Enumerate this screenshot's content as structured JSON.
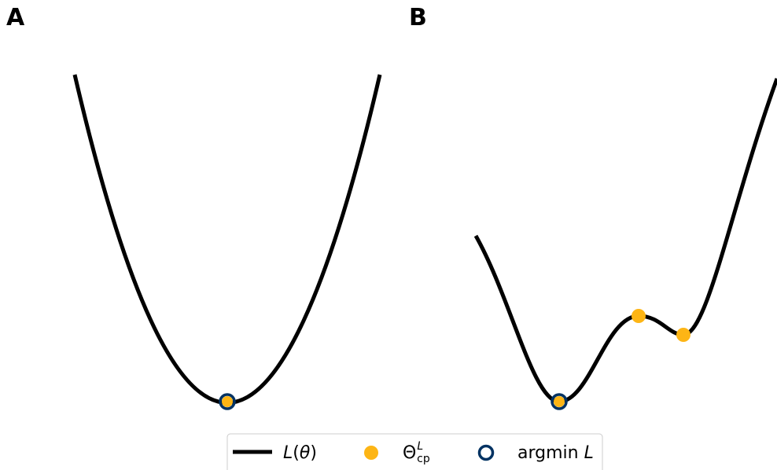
{
  "panels": [
    {
      "label": "A"
    },
    {
      "label": "B"
    }
  ],
  "legend": {
    "loss_curve": {
      "symbol": "L",
      "arg_open": "(",
      "arg": "θ",
      "arg_close": ")"
    },
    "critical_points": {
      "symbol": "Θ",
      "sup": "L",
      "sub": "cp"
    },
    "argmin": {
      "text": "argmin ",
      "symbol": "L"
    }
  },
  "colors": {
    "curve": "#000000",
    "critical_point": "#FDB515",
    "argmin_ring": "#003262",
    "legend_border": "#cccccc"
  },
  "chart_data": [
    {
      "type": "line",
      "panel": "A",
      "x": [
        -1,
        1
      ],
      "function": "quadratic",
      "series": [
        {
          "name": "L(θ)",
          "shape": "parabola"
        }
      ],
      "critical_points_x": [
        0
      ],
      "argmin_x": 0
    },
    {
      "type": "line",
      "panel": "B",
      "function": "quartic-like with two local minima",
      "series": [
        {
          "name": "L(θ)",
          "shape": "double-well"
        }
      ],
      "critical_points_count": 3,
      "argmin_count": 1
    }
  ]
}
